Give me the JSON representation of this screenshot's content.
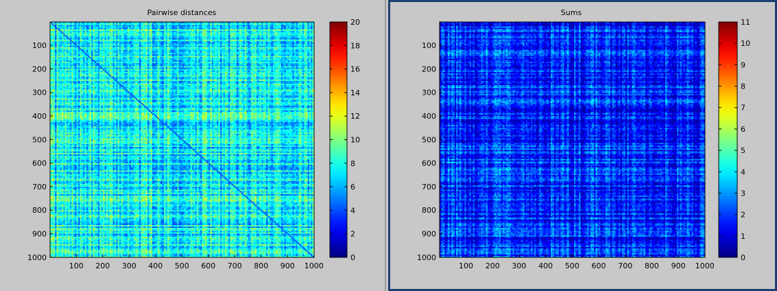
{
  "chart_data": [
    {
      "type": "heatmap",
      "title": "Pairwise distances",
      "xlabel": "",
      "ylabel": "",
      "x_ticks": [
        "100",
        "200",
        "300",
        "400",
        "500",
        "600",
        "700",
        "800",
        "900",
        "1000"
      ],
      "y_ticks": [
        "100",
        "200",
        "300",
        "400",
        "500",
        "600",
        "700",
        "800",
        "900",
        "1000"
      ],
      "xlim": [
        1,
        1000
      ],
      "ylim": [
        1,
        1000
      ],
      "y_direction": "reversed",
      "colorbar": {
        "colormap": "jet",
        "range": [
          0,
          20
        ],
        "ticks": [
          "0",
          "2",
          "4",
          "6",
          "8",
          "10",
          "12",
          "14",
          "16",
          "18",
          "20"
        ]
      },
      "value_summary": {
        "typical_min": 4,
        "typical_max": 12,
        "typical_center": 7.5,
        "diagonal_value": 0
      }
    },
    {
      "type": "heatmap",
      "title": "Sums",
      "xlabel": "",
      "ylabel": "",
      "x_ticks": [
        "100",
        "200",
        "300",
        "400",
        "500",
        "600",
        "700",
        "800",
        "900",
        "1000"
      ],
      "y_ticks": [
        "100",
        "200",
        "300",
        "400",
        "500",
        "600",
        "700",
        "800",
        "900",
        "1000"
      ],
      "xlim": [
        1,
        1000
      ],
      "ylim": [
        1,
        1000
      ],
      "y_direction": "reversed",
      "colorbar": {
        "colormap": "jet",
        "range": [
          0,
          11
        ],
        "ticks": [
          "0",
          "1",
          "2",
          "3",
          "4",
          "5",
          "6",
          "7",
          "8",
          "9",
          "10",
          "11"
        ]
      },
      "value_summary": {
        "typical_min": 0.5,
        "typical_max": 4.5,
        "typical_center": 1.8
      }
    }
  ]
}
